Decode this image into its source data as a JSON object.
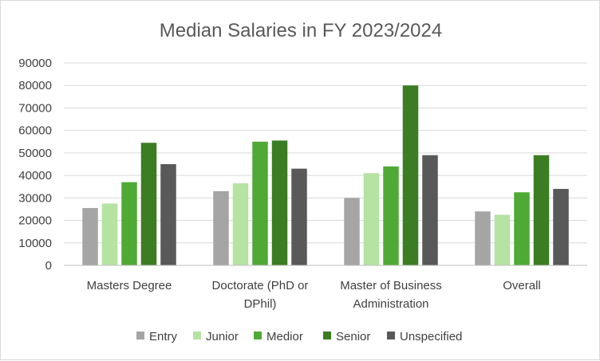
{
  "chart_data": {
    "type": "bar",
    "title": "Median Salaries in FY 2023/2024",
    "xlabel": "",
    "ylabel": "",
    "ylim": [
      0,
      90000
    ],
    "yticks": [
      "0",
      "10000",
      "20000",
      "30000",
      "40000",
      "50000",
      "60000",
      "70000",
      "80000",
      "90000"
    ],
    "grid": true,
    "legend": "bottom",
    "categories": [
      [
        "Masters Degree"
      ],
      [
        "Doctorate (PhD or",
        "DPhil)"
      ],
      [
        "Master of Business",
        "Administration"
      ],
      [
        "Overall"
      ]
    ],
    "series": [
      {
        "name": "Entry",
        "color": "#a5a5a5",
        "values": [
          25500,
          33000,
          30000,
          24000
        ]
      },
      {
        "name": "Junior",
        "color": "#b4e3a2",
        "values": [
          27500,
          36500,
          41000,
          22500
        ]
      },
      {
        "name": "Medior",
        "color": "#4eaa35",
        "values": [
          37000,
          55000,
          44000,
          32500
        ]
      },
      {
        "name": "Senior",
        "color": "#3b7d23",
        "values": [
          54500,
          55500,
          80000,
          49000
        ]
      },
      {
        "name": "Unspecified",
        "color": "#595959",
        "values": [
          45000,
          43000,
          49000,
          34000
        ]
      }
    ]
  }
}
